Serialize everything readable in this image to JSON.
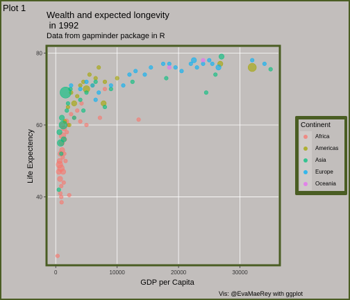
{
  "plot_label": "Plot 1",
  "caption": "Vis: @EvaMaeRey with ggplot",
  "colors": {
    "background": "#c2bebc",
    "border": "#4a5d23",
    "Africa": "#f8766d",
    "Americas": "#a3a500",
    "Asia": "#00bf7d",
    "Europe": "#00b0f6",
    "Oceania": "#e76bf3"
  },
  "chart_data": {
    "type": "scatter",
    "title": "Wealth and expected longevity\n in 1992",
    "subtitle": "Data from gapminder package in R",
    "xlabel": "GDP per Capita",
    "ylabel": "Life Expectency",
    "xlim": [
      -1500,
      36500
    ],
    "ylim": [
      21,
      82
    ],
    "x_ticks": [
      0,
      10000,
      20000,
      30000
    ],
    "x_tick_labels": [
      "0",
      "10000",
      "20000",
      "30000"
    ],
    "y_ticks": [
      40,
      60,
      80
    ],
    "y_tick_labels": [
      "40",
      "60",
      "80"
    ],
    "grid": true,
    "legend_title": "Continent",
    "legend_position": "right",
    "legend": [
      "Africa",
      "Americas",
      "Asia",
      "Europe",
      "Oceania"
    ],
    "size_by": "population",
    "series": [
      {
        "name": "Africa",
        "points": [
          [
            300,
            23.6,
            1
          ],
          [
            500,
            47,
            2
          ],
          [
            600,
            49,
            3
          ],
          [
            650,
            50,
            2
          ],
          [
            700,
            45,
            2
          ],
          [
            750,
            41,
            1
          ],
          [
            800,
            52,
            2
          ],
          [
            850,
            48,
            3
          ],
          [
            900,
            43,
            1
          ],
          [
            950,
            38.5,
            1
          ],
          [
            1000,
            55,
            2
          ],
          [
            1050,
            53,
            2
          ],
          [
            1100,
            57,
            3
          ],
          [
            1150,
            51,
            1
          ],
          [
            1200,
            47,
            2
          ],
          [
            1300,
            44,
            1
          ],
          [
            1350,
            59,
            2
          ],
          [
            1400,
            52,
            1
          ],
          [
            1500,
            56,
            1
          ],
          [
            1600,
            50,
            1
          ],
          [
            1700,
            61,
            2
          ],
          [
            1800,
            58,
            1
          ],
          [
            2000,
            60,
            1
          ],
          [
            2200,
            40.5,
            1
          ],
          [
            2500,
            63,
            1
          ],
          [
            3000,
            62,
            1
          ],
          [
            3500,
            64,
            1
          ],
          [
            4000,
            61,
            1
          ],
          [
            4200,
            66,
            1
          ],
          [
            5000,
            60,
            1
          ],
          [
            7200,
            62,
            1
          ],
          [
            8000,
            70,
            1
          ],
          [
            13500,
            61.5,
            1
          ],
          [
            900,
            40,
            1
          ],
          [
            1100,
            60,
            2
          ]
        ]
      },
      {
        "name": "Americas",
        "points": [
          [
            1500,
            61,
            1
          ],
          [
            2000,
            65,
            1
          ],
          [
            2500,
            69,
            1
          ],
          [
            3000,
            66,
            2
          ],
          [
            3500,
            68,
            1
          ],
          [
            4000,
            71,
            1
          ],
          [
            4500,
            72,
            1
          ],
          [
            5000,
            70,
            3
          ],
          [
            5500,
            74,
            1
          ],
          [
            6000,
            71,
            1
          ],
          [
            6500,
            73,
            1
          ],
          [
            7000,
            76,
            1
          ],
          [
            7800,
            66,
            2
          ],
          [
            8000,
            72,
            1
          ],
          [
            10000,
            73,
            1
          ],
          [
            26800,
            77,
            2
          ],
          [
            32000,
            76,
            4
          ],
          [
            2200,
            60,
            1
          ]
        ]
      },
      {
        "name": "Asia",
        "points": [
          [
            600,
            58,
            2
          ],
          [
            800,
            55,
            3
          ],
          [
            900,
            52,
            1
          ],
          [
            1000,
            62,
            2
          ],
          [
            1200,
            60,
            4
          ],
          [
            1600,
            69,
            6
          ],
          [
            1800,
            64,
            1
          ],
          [
            2000,
            66,
            1
          ],
          [
            2400,
            70,
            1
          ],
          [
            3000,
            62,
            1
          ],
          [
            4000,
            67,
            1
          ],
          [
            4500,
            64,
            1
          ],
          [
            5000,
            69,
            1
          ],
          [
            6500,
            72,
            1
          ],
          [
            8000,
            65,
            1
          ],
          [
            9000,
            70,
            1
          ],
          [
            12500,
            72,
            1
          ],
          [
            18000,
            73,
            1
          ],
          [
            24500,
            69,
            1
          ],
          [
            26000,
            74,
            1
          ],
          [
            27000,
            79,
            2
          ],
          [
            35000,
            75.5,
            1
          ],
          [
            500,
            42,
            1
          ],
          [
            1300,
            56,
            2
          ]
        ]
      },
      {
        "name": "Europe",
        "points": [
          [
            2500,
            71,
            1
          ],
          [
            4000,
            70,
            1
          ],
          [
            5000,
            72,
            1
          ],
          [
            6000,
            71,
            1
          ],
          [
            7000,
            69,
            1
          ],
          [
            9000,
            71,
            1
          ],
          [
            11000,
            71,
            1
          ],
          [
            12000,
            74,
            1
          ],
          [
            13000,
            75,
            1
          ],
          [
            14500,
            74,
            1
          ],
          [
            15500,
            76,
            1
          ],
          [
            17500,
            77,
            1
          ],
          [
            18500,
            77,
            1
          ],
          [
            19500,
            76,
            1
          ],
          [
            20500,
            75,
            1
          ],
          [
            22000,
            77,
            1
          ],
          [
            22500,
            78,
            2
          ],
          [
            23000,
            76,
            1
          ],
          [
            24000,
            77,
            1
          ],
          [
            25000,
            78,
            1
          ],
          [
            25500,
            77,
            1
          ],
          [
            26500,
            76,
            2
          ],
          [
            32000,
            78,
            1
          ],
          [
            34000,
            77,
            1
          ],
          [
            6500,
            67,
            1
          ]
        ]
      },
      {
        "name": "Oceania",
        "points": [
          [
            18500,
            76,
            1
          ],
          [
            24000,
            78,
            1
          ]
        ]
      }
    ]
  }
}
